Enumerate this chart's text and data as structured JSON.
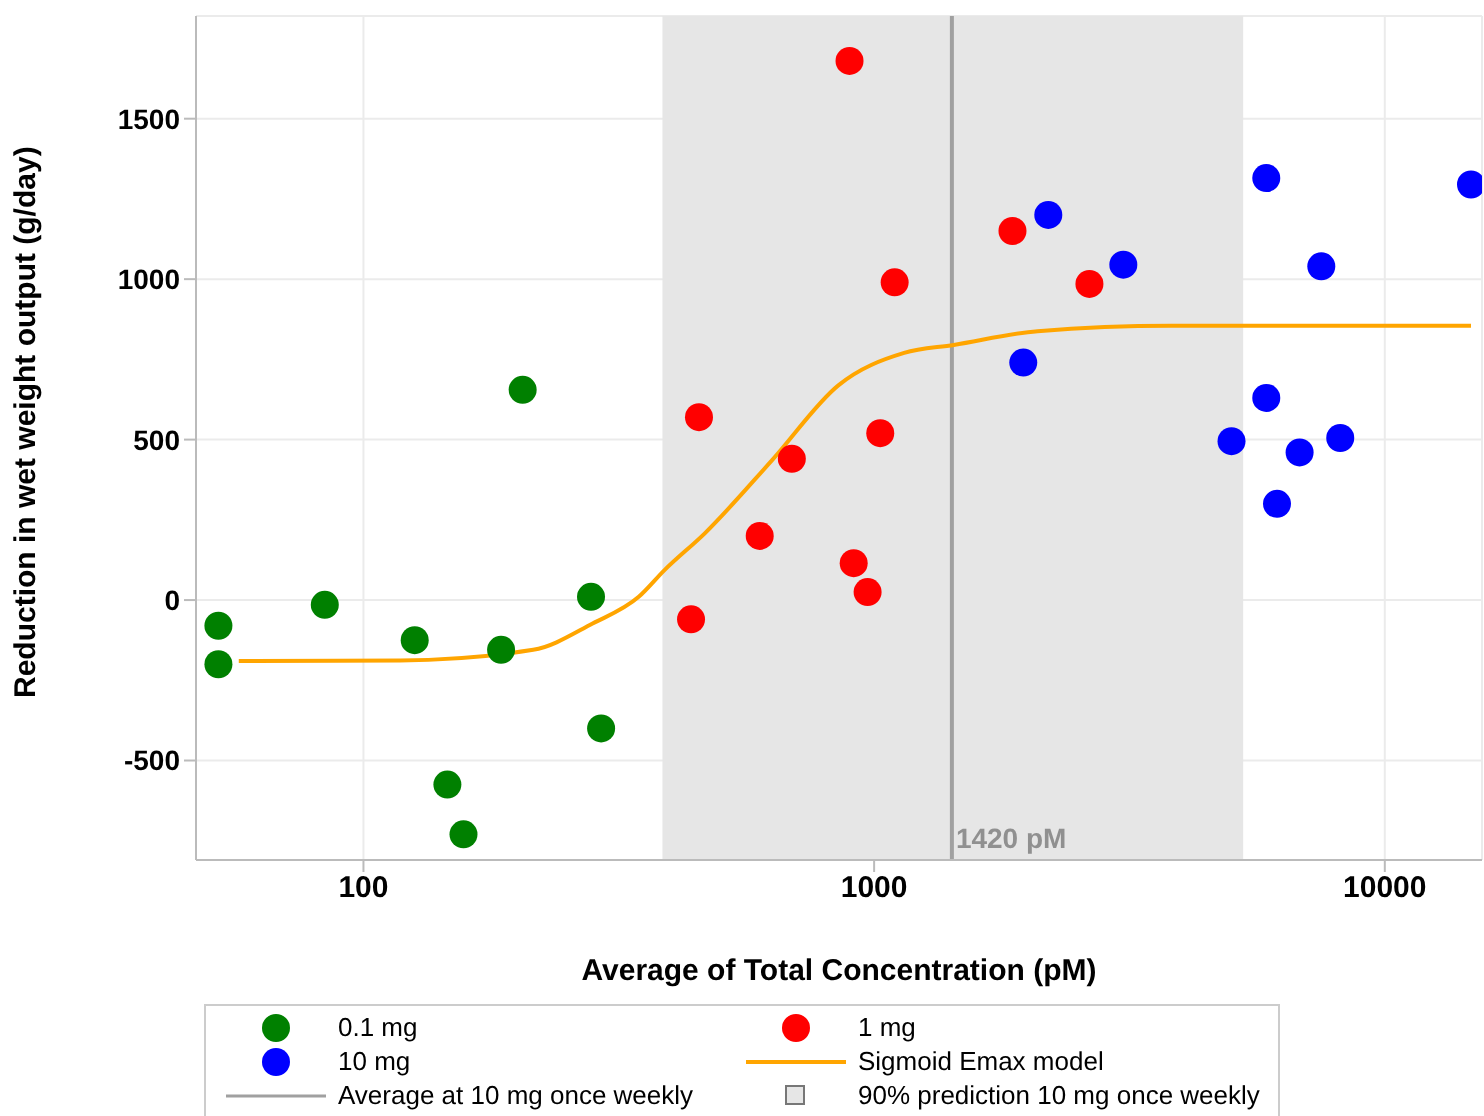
{
  "chart_data": {
    "type": "scatter",
    "xlabel": "Average of Total Concentration (pM)",
    "ylabel": "Reduction in wet weight output (g/day)",
    "log": "x",
    "xlim": [
      47,
      15500
    ],
    "xticks": [
      100,
      1000,
      10000
    ],
    "ylim": [
      -810,
      1820
    ],
    "yticks": [
      -500,
      0,
      500,
      1000,
      1500
    ],
    "grid": true,
    "legend": "bottom",
    "marker": "circle",
    "series": [
      {
        "name": "0.1 mg",
        "color": "#008000",
        "x": [
          52,
          52,
          84,
          126,
          146,
          157,
          186,
          205,
          279,
          292
        ],
        "values": [
          -80,
          -200,
          -15,
          -125,
          -575,
          -730,
          -155,
          655,
          10,
          -400
        ]
      },
      {
        "name": "1 mg",
        "color": "#ff0000",
        "x": [
          895,
          454,
          690,
          597,
          438,
          912,
          971,
          1028,
          1097,
          1866,
          2640
        ],
        "values": [
          1680,
          570,
          440,
          200,
          -60,
          115,
          25,
          520,
          990,
          1150,
          985
        ]
      },
      {
        "name": "10 mg",
        "color": "#0000ff",
        "x": [
          2193,
          3076,
          1959,
          5860,
          7510,
          5860,
          5010,
          6810,
          8180,
          6150,
          14750
        ],
        "values": [
          1200,
          1045,
          740,
          1315,
          1040,
          630,
          495,
          460,
          505,
          300,
          1295
        ]
      },
      {
        "name": "Sigmoid Emax model",
        "type": "line",
        "color": "#ffa500",
        "marker": "none",
        "x": [
          57,
          118,
          215,
          281,
          346,
          389,
          466,
          632,
          851,
          1145,
          1432,
          2090,
          3820,
          14750
        ],
        "values": [
          -190,
          -188,
          -155,
          -73,
          10,
          94,
          208,
          437,
          669,
          770,
          795,
          838,
          855,
          855
        ]
      }
    ],
    "ref_lines": [
      {
        "axis": "x",
        "value": 1420,
        "label": "Average at 10 mg once weekly",
        "color": "#a0a0a0"
      }
    ],
    "bands": [
      {
        "axis": "x",
        "from": 385,
        "to": 5280,
        "label": "90% prediction 10 mg once weekly",
        "color": "#e6e6e6"
      }
    ],
    "annotations": [
      {
        "text": "1420 pM",
        "x": 1420,
        "y": -810
      }
    ]
  }
}
